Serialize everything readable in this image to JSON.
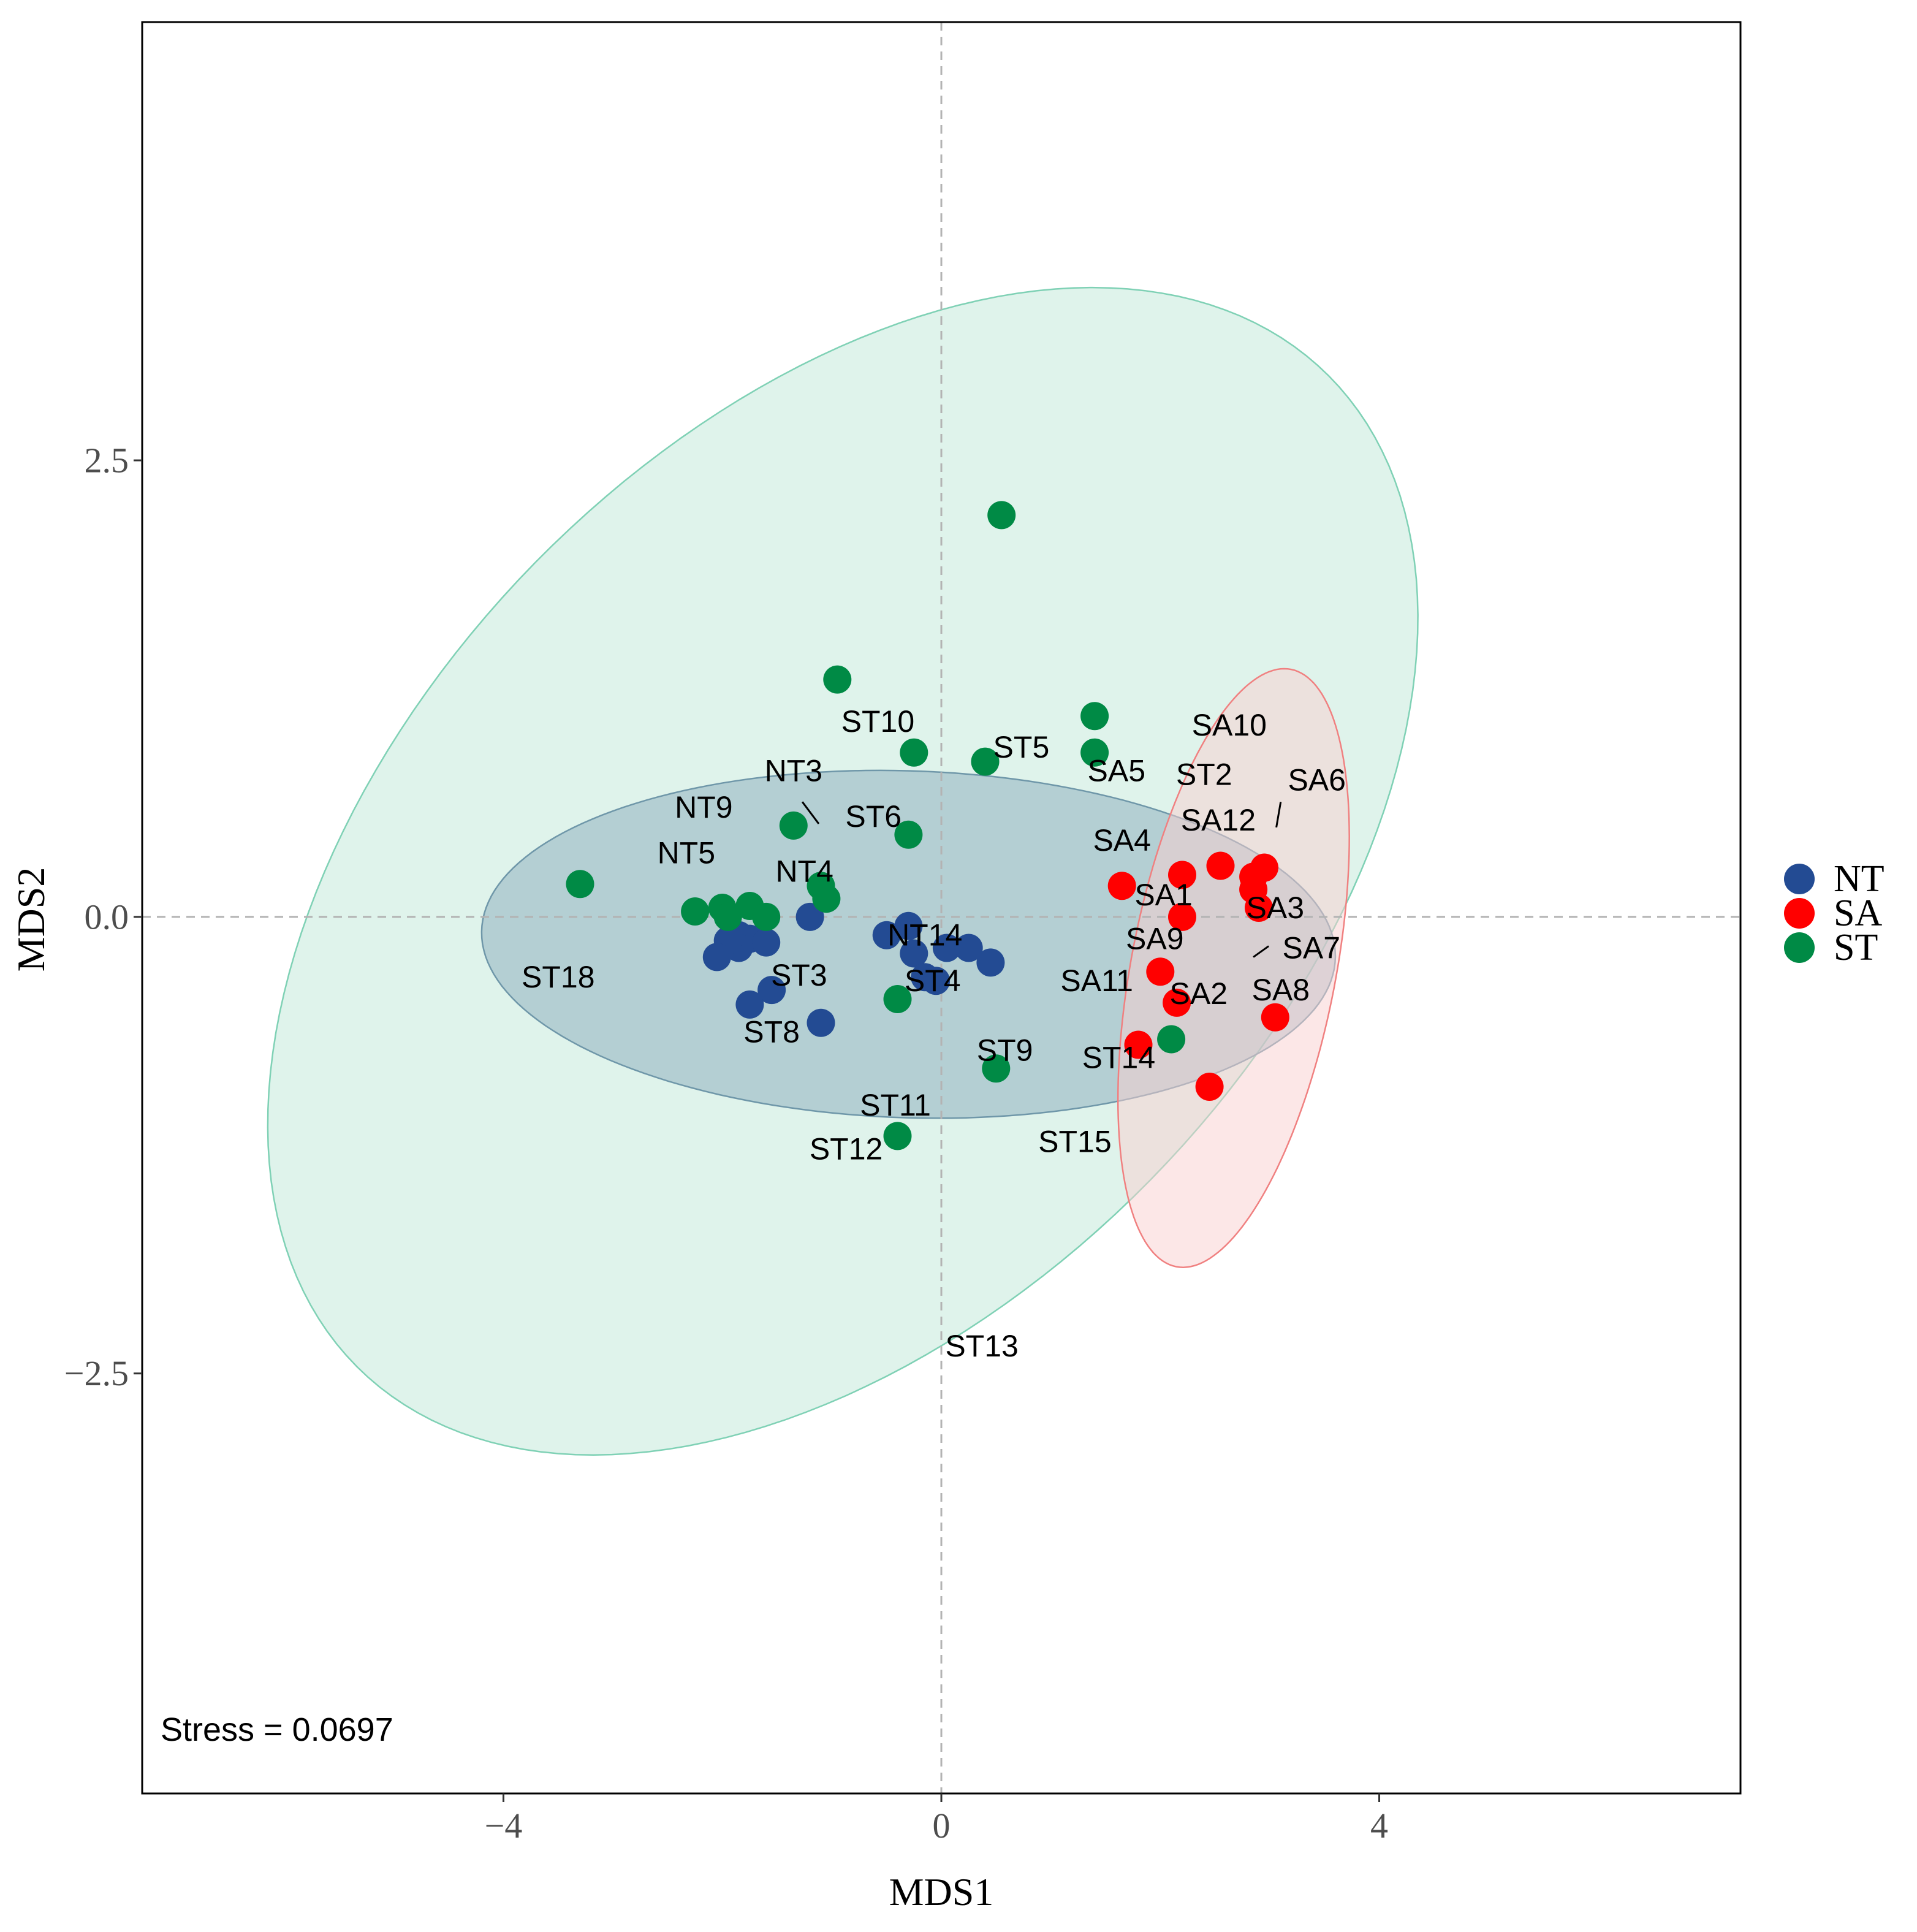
{
  "chart_data": {
    "type": "scatter",
    "xlabel": "MDS1",
    "ylabel": "MDS2",
    "xlim": [
      -7.3,
      7.3
    ],
    "ylim": [
      -4.8,
      4.9
    ],
    "xticks": [
      -4,
      0,
      4
    ],
    "yticks": [
      -2.5,
      0.0,
      2.5
    ],
    "tick_labels": {
      "x": [
        "−4",
        "0",
        "4"
      ],
      "y": [
        "−2.5",
        "0.0",
        "2.5"
      ]
    },
    "reference_lines": {
      "x": 0,
      "y": 0,
      "style": "dashed"
    },
    "grid": false,
    "legend_position": "right",
    "annotation": "Stress = 0.0697",
    "colors": {
      "NT": "#234B93",
      "SA": "#FF0000",
      "ST": "#008A45"
    },
    "ellipses": [
      {
        "group": "ST",
        "center": [
          -0.9,
          0.25
        ],
        "semi_axes": [
          5.5,
          2.75
        ],
        "angle_deg": 20,
        "fill": "#BFE8D8",
        "stroke": "#7FD1B5"
      },
      {
        "group": "NT",
        "center": [
          -0.3,
          -0.15
        ],
        "semi_axes": [
          3.9,
          0.95
        ],
        "angle_deg": -1,
        "fill": "#8FB1C0",
        "stroke": "#6F97A9"
      },
      {
        "group": "SA",
        "center": [
          2.67,
          -0.28
        ],
        "semi_axes": [
          1.73,
          0.9
        ],
        "angle_deg": 68,
        "fill": "#FAD0D0",
        "stroke": "#F08080"
      }
    ],
    "series": [
      {
        "name": "NT",
        "x": [
          -1.2,
          -1.85,
          -1.75,
          -1.85,
          -1.95,
          -2.05,
          -1.6,
          -1.55,
          -1.75,
          -1.1,
          -0.5,
          -0.3,
          -0.25,
          -0.15,
          -0.05,
          0.05,
          0.25,
          0.45
        ],
        "y": [
          0.0,
          -0.1,
          -0.12,
          -0.17,
          -0.13,
          -0.22,
          -0.14,
          -0.4,
          -0.48,
          -0.58,
          -0.1,
          -0.05,
          -0.2,
          -0.33,
          -0.35,
          -0.17,
          -0.17,
          -0.25
        ]
      },
      {
        "name": "SA",
        "x": [
          1.65,
          2.2,
          2.2,
          2.55,
          2.85,
          2.95,
          2.85,
          2.9,
          2.0,
          2.15,
          3.05,
          1.8,
          2.45
        ],
        "y": [
          0.17,
          0.23,
          0.0,
          0.28,
          0.22,
          0.27,
          0.15,
          0.05,
          -0.3,
          -0.47,
          -0.55,
          -0.7,
          -0.93
        ]
      },
      {
        "name": "ST",
        "x": [
          0.55,
          -0.95,
          1.4,
          1.4,
          -0.25,
          0.4,
          -1.35,
          -0.3,
          -1.1,
          -1.05,
          -3.3,
          -2.25,
          -2.0,
          -1.95,
          -1.75,
          -1.6,
          -0.4,
          2.1,
          0.5,
          -0.4
        ],
        "y": [
          2.2,
          1.3,
          1.1,
          0.9,
          0.9,
          0.85,
          0.5,
          0.45,
          0.17,
          0.1,
          0.18,
          0.03,
          0.05,
          0.0,
          0.06,
          0.0,
          -0.45,
          -0.67,
          -0.83,
          -1.2
        ]
      }
    ],
    "point_labels": [
      {
        "text": "ST10",
        "x": -0.58,
        "y": 1.07
      },
      {
        "text": "ST5",
        "x": 0.73,
        "y": 0.93
      },
      {
        "text": "SA10",
        "x": 2.63,
        "y": 1.05
      },
      {
        "text": "NT3",
        "x": -1.35,
        "y": 0.8
      },
      {
        "text": "SA5",
        "x": 1.6,
        "y": 0.8
      },
      {
        "text": "ST2",
        "x": 2.4,
        "y": 0.78
      },
      {
        "text": "SA6",
        "x": 3.43,
        "y": 0.75
      },
      {
        "text": "NT9",
        "x": -2.17,
        "y": 0.6
      },
      {
        "text": "ST6",
        "x": -0.62,
        "y": 0.55
      },
      {
        "text": "SA12",
        "x": 2.53,
        "y": 0.53
      },
      {
        "text": "NT5",
        "x": -2.33,
        "y": 0.35
      },
      {
        "text": "SA4",
        "x": 1.65,
        "y": 0.42
      },
      {
        "text": "NT4",
        "x": -1.25,
        "y": 0.25
      },
      {
        "text": "SA1",
        "x": 2.03,
        "y": 0.12
      },
      {
        "text": "SA3",
        "x": 3.05,
        "y": 0.05
      },
      {
        "text": "NT14",
        "x": -0.15,
        "y": -0.1
      },
      {
        "text": "SA9",
        "x": 1.95,
        "y": -0.12
      },
      {
        "text": "SA7",
        "x": 3.38,
        "y": -0.17
      },
      {
        "text": "ST18",
        "x": -3.5,
        "y": -0.33
      },
      {
        "text": "ST3",
        "x": -1.3,
        "y": -0.32
      },
      {
        "text": "ST4",
        "x": -0.08,
        "y": -0.35
      },
      {
        "text": "SA11",
        "x": 1.42,
        "y": -0.35
      },
      {
        "text": "SA2",
        "x": 2.35,
        "y": -0.42
      },
      {
        "text": "SA8",
        "x": 3.1,
        "y": -0.4
      },
      {
        "text": "ST8",
        "x": -1.55,
        "y": -0.63
      },
      {
        "text": "ST9",
        "x": 0.58,
        "y": -0.73
      },
      {
        "text": "ST14",
        "x": 1.62,
        "y": -0.77
      },
      {
        "text": "ST11",
        "x": -0.42,
        "y": -1.03
      },
      {
        "text": "ST12",
        "x": -0.87,
        "y": -1.27
      },
      {
        "text": "ST15",
        "x": 1.22,
        "y": -1.23
      },
      {
        "text": "ST13",
        "x": 0.37,
        "y": -2.35
      }
    ],
    "label_segments": [
      {
        "x1": -1.27,
        "y1": 0.63,
        "x2": -1.12,
        "y2": 0.51
      },
      {
        "x1": 3.1,
        "y1": 0.63,
        "x2": 3.06,
        "y2": 0.49
      },
      {
        "x1": 2.85,
        "y1": -0.22,
        "x2": 2.99,
        "y2": -0.16
      }
    ]
  }
}
